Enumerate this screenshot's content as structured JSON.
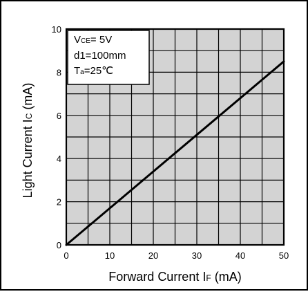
{
  "chart_data": {
    "type": "line",
    "title": "",
    "xlabel": {
      "main": "Forward Current",
      "symbol": "I",
      "subscript": "F",
      "unit": "(mA)"
    },
    "ylabel": {
      "main": "Light Current",
      "symbol": "I",
      "subscript": "C",
      "unit": "(mA)"
    },
    "xlim": [
      0,
      50
    ],
    "ylim": [
      0,
      10
    ],
    "x_ticks": [
      0,
      10,
      20,
      30,
      40,
      50
    ],
    "y_ticks": [
      0,
      2,
      4,
      6,
      8,
      10
    ],
    "x_minor_step": 5,
    "y_minor_step": 1,
    "grid": true,
    "plot_background": "#d3d3d3",
    "line_color": "#000000",
    "series": [
      {
        "x": [
          0,
          50
        ],
        "y": [
          0,
          8.5
        ]
      }
    ],
    "conditions_box": [
      {
        "prefix": "V",
        "sub": "CE",
        "suffix": "= 5V"
      },
      {
        "prefix": "d1=100mm",
        "sub": "",
        "suffix": ""
      },
      {
        "prefix": "T",
        "sub": "a",
        "suffix": "=25℃"
      }
    ]
  }
}
